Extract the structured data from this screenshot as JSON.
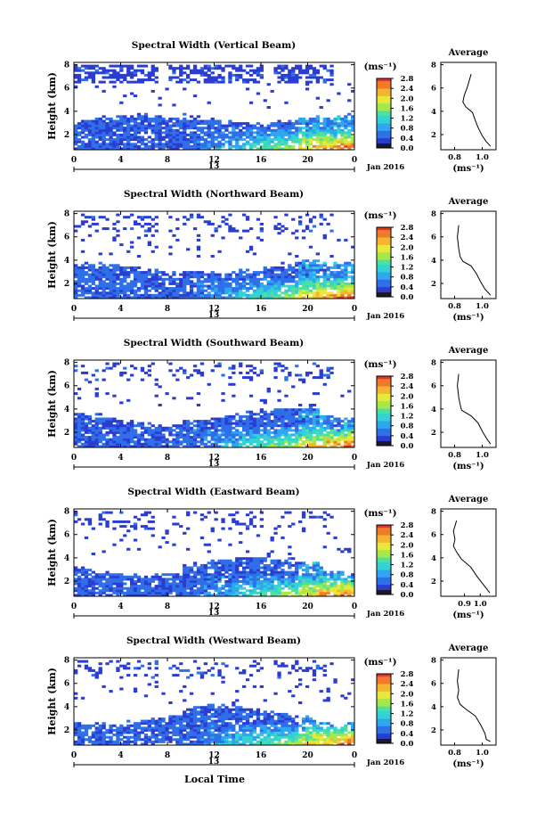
{
  "figure": {
    "xlabel": "Local Time",
    "colorbar_unit": "(ms⁻¹)",
    "average_title": "Average",
    "average_xlabel": "(ms⁻¹)",
    "date_label": "Jan 2016",
    "day_label": "13"
  },
  "chart_data": [
    {
      "type": "heatmap",
      "title": "Spectral Width (Vertical Beam)",
      "ylabel": "Height (km)",
      "x_ticks": [
        "0",
        "4",
        "8",
        "12",
        "16",
        "20",
        "0"
      ],
      "y_ticks": [
        "2",
        "4",
        "6",
        "8"
      ],
      "xlim": [
        0,
        24
      ],
      "ylim": [
        0.7,
        8.2
      ],
      "colorbar": {
        "ticks": [
          "0.0",
          "0.4",
          "0.8",
          "1.2",
          "1.6",
          "2.0",
          "2.4",
          "2.8"
        ],
        "range": [
          0,
          2.8
        ]
      },
      "average_profile": {
        "x_ticks": [
          "0.8",
          "1.0"
        ],
        "y_ticks": [
          "2",
          "4",
          "6",
          "8"
        ],
        "xlim": [
          0.7,
          1.1
        ],
        "points": [
          [
            0.92,
            7.2
          ],
          [
            0.89,
            6.0
          ],
          [
            0.87,
            5.4
          ],
          [
            0.86,
            4.8
          ],
          [
            0.88,
            4.4
          ],
          [
            0.93,
            3.9
          ],
          [
            0.95,
            3.2
          ],
          [
            0.97,
            2.6
          ],
          [
            1.0,
            1.9
          ],
          [
            1.03,
            1.4
          ],
          [
            1.06,
            1.0
          ]
        ]
      }
    },
    {
      "type": "heatmap",
      "title": "Spectral Width (Northward Beam)",
      "ylabel": "Height (km)",
      "x_ticks": [
        "0",
        "4",
        "8",
        "12",
        "16",
        "20",
        "0"
      ],
      "y_ticks": [
        "2",
        "4",
        "6",
        "8"
      ],
      "xlim": [
        0,
        24
      ],
      "ylim": [
        0.7,
        8.2
      ],
      "colorbar": {
        "ticks": [
          "0.0",
          "0.4",
          "0.8",
          "1.2",
          "1.6",
          "2.0",
          "2.4",
          "2.8"
        ],
        "range": [
          0,
          2.8
        ]
      },
      "average_profile": {
        "x_ticks": [
          "0.8",
          "1.0"
        ],
        "y_ticks": [
          "2",
          "4",
          "6",
          "8"
        ],
        "xlim": [
          0.7,
          1.1
        ],
        "points": [
          [
            0.83,
            7.0
          ],
          [
            0.82,
            6.0
          ],
          [
            0.83,
            5.0
          ],
          [
            0.84,
            4.3
          ],
          [
            0.86,
            3.9
          ],
          [
            0.92,
            3.5
          ],
          [
            0.96,
            2.8
          ],
          [
            0.99,
            2.1
          ],
          [
            1.02,
            1.5
          ],
          [
            1.06,
            1.0
          ]
        ]
      }
    },
    {
      "type": "heatmap",
      "title": "Spectral Width (Southward Beam)",
      "ylabel": "Height (km)",
      "x_ticks": [
        "0",
        "4",
        "8",
        "12",
        "16",
        "20",
        "0"
      ],
      "y_ticks": [
        "2",
        "4",
        "6",
        "8"
      ],
      "xlim": [
        0,
        24
      ],
      "ylim": [
        0.7,
        8.2
      ],
      "colorbar": {
        "ticks": [
          "0.0",
          "0.4",
          "0.8",
          "1.2",
          "1.6",
          "2.0",
          "2.4",
          "2.8"
        ],
        "range": [
          0,
          2.8
        ]
      },
      "average_profile": {
        "x_ticks": [
          "0.8",
          "1.0"
        ],
        "y_ticks": [
          "2",
          "4",
          "6",
          "8"
        ],
        "xlim": [
          0.7,
          1.1
        ],
        "points": [
          [
            0.83,
            7.0
          ],
          [
            0.82,
            6.0
          ],
          [
            0.83,
            5.0
          ],
          [
            0.84,
            4.4
          ],
          [
            0.85,
            3.9
          ],
          [
            0.92,
            3.4
          ],
          [
            0.97,
            2.8
          ],
          [
            1.0,
            2.1
          ],
          [
            1.03,
            1.5
          ],
          [
            1.06,
            1.0
          ]
        ]
      }
    },
    {
      "type": "heatmap",
      "title": "Spectral Width (Eastward Beam)",
      "ylabel": "Height (km)",
      "x_ticks": [
        "0",
        "4",
        "8",
        "12",
        "16",
        "20",
        "0"
      ],
      "y_ticks": [
        "2",
        "4",
        "6",
        "8"
      ],
      "xlim": [
        0,
        24
      ],
      "ylim": [
        0.7,
        8.2
      ],
      "colorbar": {
        "ticks": [
          "0.0",
          "0.4",
          "0.8",
          "1.2",
          "1.6",
          "2.0",
          "2.4",
          "2.8"
        ],
        "range": [
          0,
          2.8
        ]
      },
      "average_profile": {
        "x_ticks": [
          "0.9",
          "1.0"
        ],
        "y_ticks": [
          "2",
          "4",
          "6",
          "8"
        ],
        "xlim": [
          0.75,
          1.1
        ],
        "points": [
          [
            0.85,
            7.2
          ],
          [
            0.83,
            6.3
          ],
          [
            0.84,
            5.6
          ],
          [
            0.83,
            5.0
          ],
          [
            0.85,
            4.5
          ],
          [
            0.88,
            3.9
          ],
          [
            0.94,
            3.2
          ],
          [
            0.98,
            2.4
          ],
          [
            1.02,
            1.7
          ],
          [
            1.06,
            1.0
          ]
        ]
      }
    },
    {
      "type": "heatmap",
      "title": "Spectral Width (Westward Beam)",
      "ylabel": "Height (km)",
      "x_ticks": [
        "0",
        "4",
        "8",
        "12",
        "16",
        "20",
        "0"
      ],
      "y_ticks": [
        "2",
        "4",
        "6",
        "8"
      ],
      "xlim": [
        0,
        24
      ],
      "ylim": [
        0.7,
        8.2
      ],
      "colorbar": {
        "ticks": [
          "0.0",
          "0.4",
          "0.8",
          "1.2",
          "1.6",
          "2.0",
          "2.4",
          "2.8"
        ],
        "range": [
          0,
          2.8
        ]
      },
      "average_profile": {
        "x_ticks": [
          "0.8",
          "1.0"
        ],
        "y_ticks": [
          "2",
          "4",
          "6",
          "8"
        ],
        "xlim": [
          0.7,
          1.1
        ],
        "points": [
          [
            0.83,
            7.2
          ],
          [
            0.82,
            6.2
          ],
          [
            0.83,
            5.4
          ],
          [
            0.82,
            4.8
          ],
          [
            0.84,
            4.2
          ],
          [
            0.88,
            3.8
          ],
          [
            0.95,
            3.2
          ],
          [
            0.99,
            2.4
          ],
          [
            1.02,
            1.7
          ],
          [
            1.03,
            1.2
          ],
          [
            1.06,
            1.0
          ]
        ]
      }
    }
  ]
}
